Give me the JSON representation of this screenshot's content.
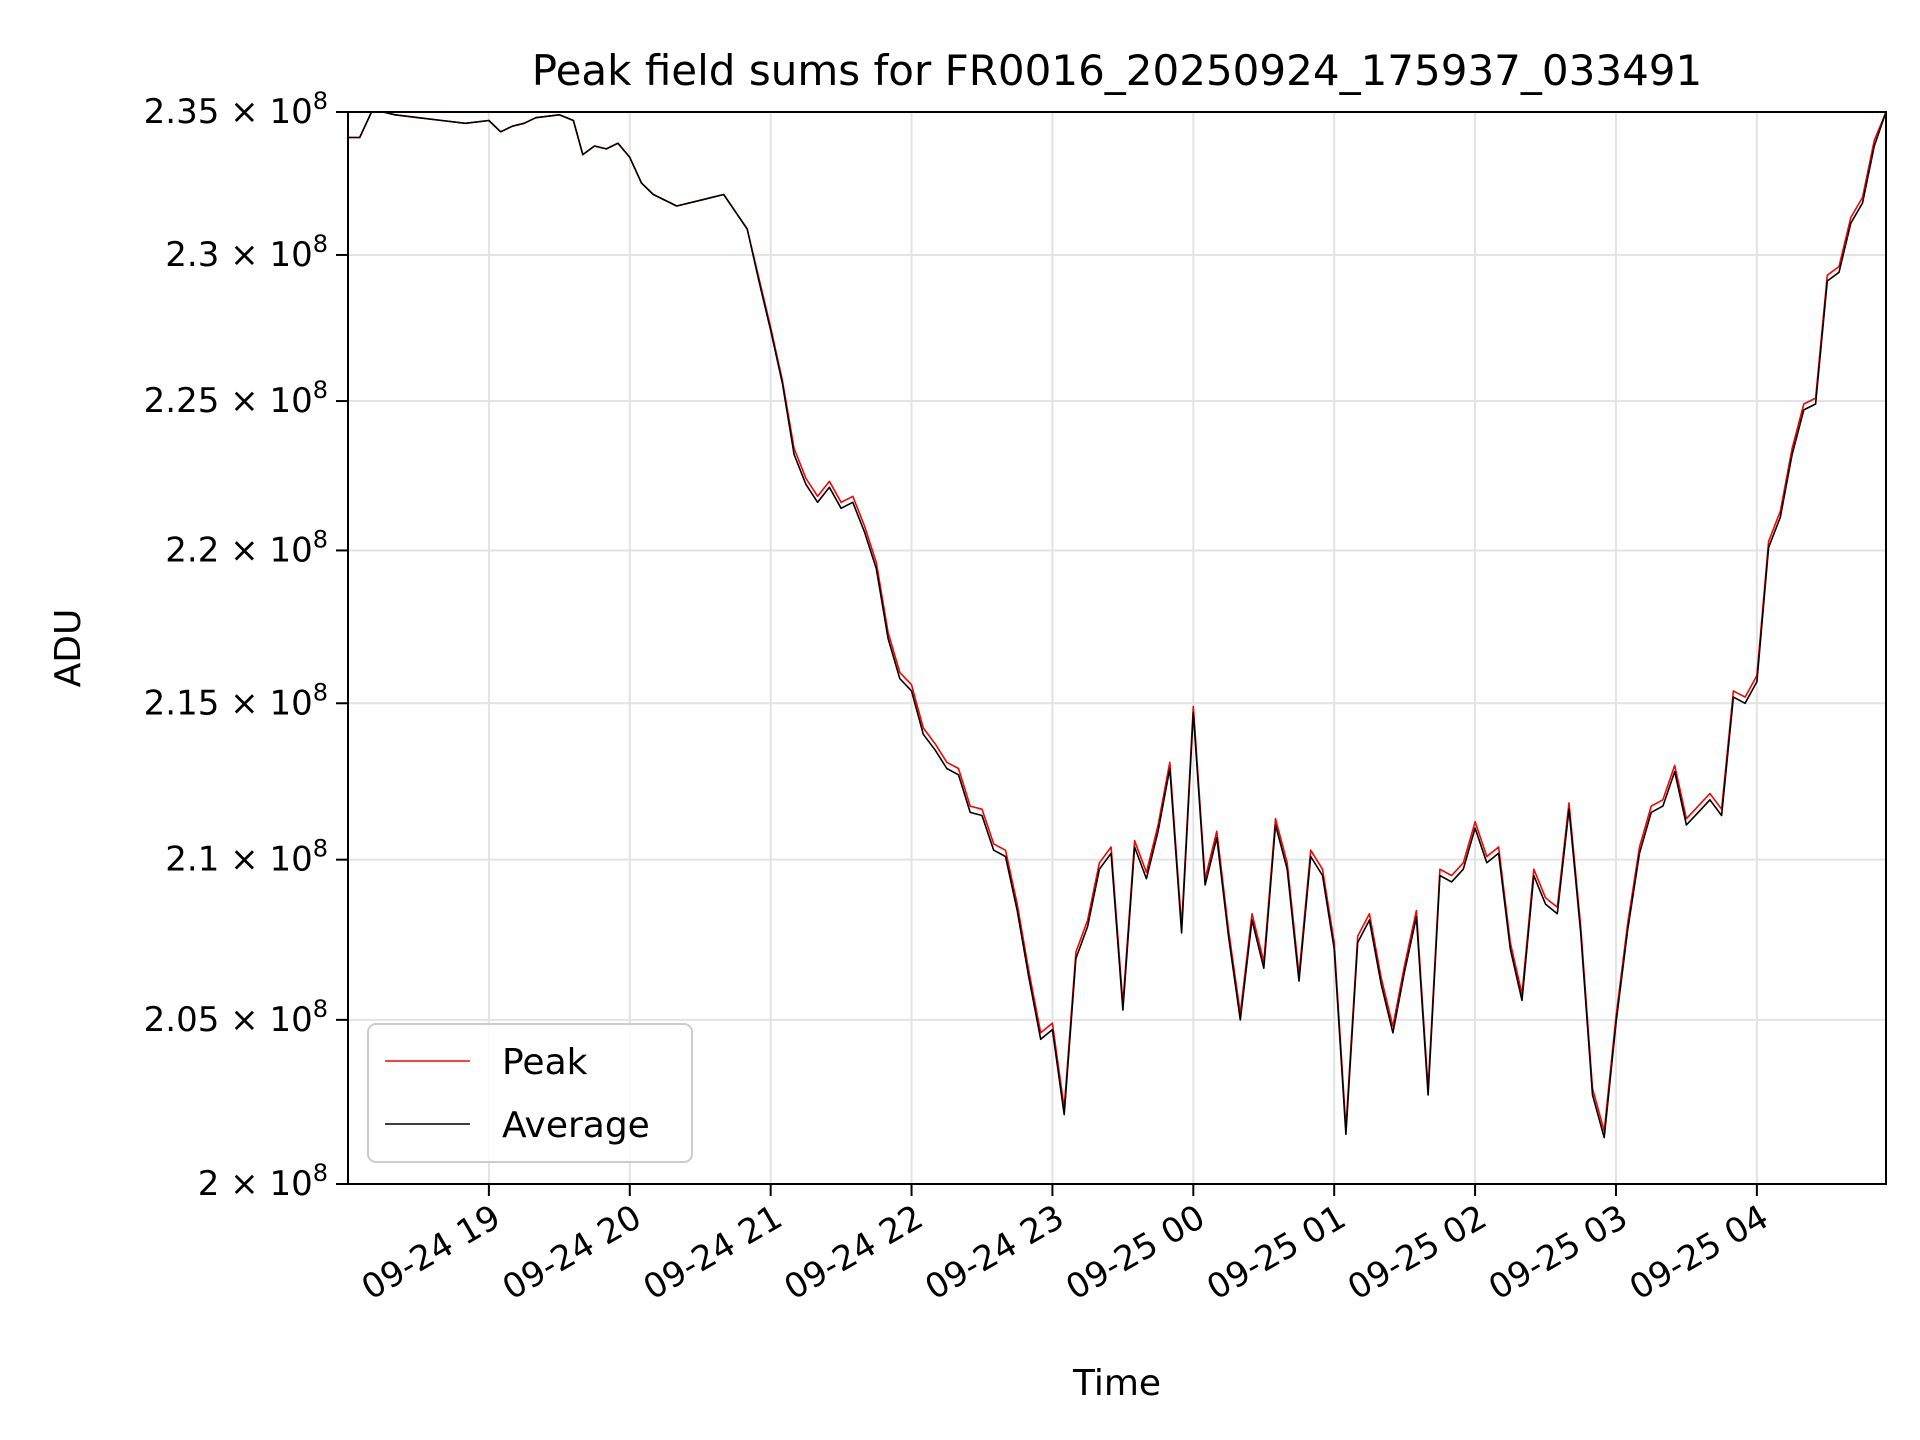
{
  "chart_data": {
    "type": "line",
    "title": "Peak field sums for FR0016_20250924_175937_033491",
    "xlabel": "Time",
    "ylabel": "ADU",
    "x_is_time": true,
    "xlim": [
      "2025-09-24 18:00",
      "2025-09-25 04:55"
    ],
    "ylim": [
      200000000,
      235000000
    ],
    "y_scale": "log",
    "grid": true,
    "legend": {
      "position": "lower-left"
    },
    "x_ticks": [
      {
        "value": "2025-09-24 19:00",
        "label": "09-24 19"
      },
      {
        "value": "2025-09-24 20:00",
        "label": "09-24 20"
      },
      {
        "value": "2025-09-24 21:00",
        "label": "09-24 21"
      },
      {
        "value": "2025-09-24 22:00",
        "label": "09-24 22"
      },
      {
        "value": "2025-09-24 23:00",
        "label": "09-24 23"
      },
      {
        "value": "2025-09-25 00:00",
        "label": "09-25 00"
      },
      {
        "value": "2025-09-25 01:00",
        "label": "09-25 01"
      },
      {
        "value": "2025-09-25 02:00",
        "label": "09-25 02"
      },
      {
        "value": "2025-09-25 03:00",
        "label": "09-25 03"
      },
      {
        "value": "2025-09-25 04:00",
        "label": "09-25 04"
      }
    ],
    "y_ticks": [
      {
        "value": 200000000,
        "mantissa": "2",
        "exponent": "8"
      },
      {
        "value": 205000000,
        "mantissa": "2.05",
        "exponent": "8"
      },
      {
        "value": 210000000,
        "mantissa": "2.1",
        "exponent": "8"
      },
      {
        "value": 215000000,
        "mantissa": "2.15",
        "exponent": "8"
      },
      {
        "value": 220000000,
        "mantissa": "2.2",
        "exponent": "8"
      },
      {
        "value": 225000000,
        "mantissa": "2.25",
        "exponent": "8"
      },
      {
        "value": 230000000,
        "mantissa": "2.3",
        "exponent": "8"
      },
      {
        "value": 235000000,
        "mantissa": "2.35",
        "exponent": "8"
      }
    ],
    "series": [
      {
        "name": "Peak",
        "color": "#ff0000",
        "x": [
          "2025-09-24 18:00",
          "2025-09-24 18:05",
          "2025-09-24 18:10",
          "2025-09-24 18:15",
          "2025-09-24 18:20",
          "2025-09-24 18:30",
          "2025-09-24 18:40",
          "2025-09-24 18:50",
          "2025-09-24 19:00",
          "2025-09-24 19:05",
          "2025-09-24 19:10",
          "2025-09-24 19:15",
          "2025-09-24 19:20",
          "2025-09-24 19:30",
          "2025-09-24 19:36",
          "2025-09-24 19:40",
          "2025-09-24 19:45",
          "2025-09-24 19:50",
          "2025-09-24 19:55",
          "2025-09-24 20:00",
          "2025-09-24 20:05",
          "2025-09-24 20:10",
          "2025-09-24 20:20",
          "2025-09-24 20:30",
          "2025-09-24 20:40",
          "2025-09-24 20:45",
          "2025-09-24 20:50",
          "2025-09-24 20:55",
          "2025-09-24 21:00",
          "2025-09-24 21:05",
          "2025-09-24 21:10",
          "2025-09-24 21:15",
          "2025-09-24 21:20",
          "2025-09-24 21:25",
          "2025-09-24 21:30",
          "2025-09-24 21:35",
          "2025-09-24 21:40",
          "2025-09-24 21:45",
          "2025-09-24 21:50",
          "2025-09-24 21:55",
          "2025-09-24 22:00",
          "2025-09-24 22:05",
          "2025-09-24 22:10",
          "2025-09-24 22:15",
          "2025-09-24 22:20",
          "2025-09-24 22:25",
          "2025-09-24 22:30",
          "2025-09-24 22:35",
          "2025-09-24 22:40",
          "2025-09-24 22:45",
          "2025-09-24 22:50",
          "2025-09-24 22:55",
          "2025-09-24 23:00",
          "2025-09-24 23:05",
          "2025-09-24 23:10",
          "2025-09-24 23:15",
          "2025-09-24 23:20",
          "2025-09-24 23:25",
          "2025-09-24 23:30",
          "2025-09-24 23:35",
          "2025-09-24 23:40",
          "2025-09-24 23:45",
          "2025-09-24 23:50",
          "2025-09-24 23:55",
          "2025-09-25 00:00",
          "2025-09-25 00:05",
          "2025-09-25 00:10",
          "2025-09-25 00:15",
          "2025-09-25 00:20",
          "2025-09-25 00:25",
          "2025-09-25 00:30",
          "2025-09-25 00:35",
          "2025-09-25 00:40",
          "2025-09-25 00:45",
          "2025-09-25 00:50",
          "2025-09-25 00:55",
          "2025-09-25 01:00",
          "2025-09-25 01:05",
          "2025-09-25 01:10",
          "2025-09-25 01:15",
          "2025-09-25 01:20",
          "2025-09-25 01:25",
          "2025-09-25 01:30",
          "2025-09-25 01:35",
          "2025-09-25 01:40",
          "2025-09-25 01:45",
          "2025-09-25 01:50",
          "2025-09-25 01:55",
          "2025-09-25 02:00",
          "2025-09-25 02:05",
          "2025-09-25 02:10",
          "2025-09-25 02:15",
          "2025-09-25 02:20",
          "2025-09-25 02:25",
          "2025-09-25 02:30",
          "2025-09-25 02:35",
          "2025-09-25 02:40",
          "2025-09-25 02:45",
          "2025-09-25 02:50",
          "2025-09-25 02:55",
          "2025-09-25 03:00",
          "2025-09-25 03:05",
          "2025-09-25 03:10",
          "2025-09-25 03:15",
          "2025-09-25 03:20",
          "2025-09-25 03:25",
          "2025-09-25 03:30",
          "2025-09-25 03:35",
          "2025-09-25 03:40",
          "2025-09-25 03:45",
          "2025-09-25 03:50",
          "2025-09-25 03:55",
          "2025-09-25 04:00",
          "2025-09-25 04:05",
          "2025-09-25 04:10",
          "2025-09-25 04:15",
          "2025-09-25 04:20",
          "2025-09-25 04:25",
          "2025-09-25 04:30",
          "2025-09-25 04:35",
          "2025-09-25 04:40",
          "2025-09-25 04:45",
          "2025-09-25 04:50",
          "2025-09-25 04:55"
        ],
        "y": [
          234100000,
          234100000,
          235000000,
          235000000,
          234900000,
          234800000,
          234700000,
          234600000,
          234700000,
          234300000,
          234500000,
          234600000,
          234800000,
          234900000,
          234700000,
          233500000,
          233800000,
          233700000,
          233900000,
          233400000,
          232500000,
          232100000,
          231700000,
          231900000,
          232100000,
          231500000,
          230900000,
          229200000,
          227500000,
          225700000,
          223400000,
          222400000,
          221800000,
          222300000,
          221600000,
          221800000,
          220800000,
          219600000,
          217300000,
          216000000,
          215600000,
          214200000,
          213700000,
          213100000,
          212900000,
          211700000,
          211600000,
          210500000,
          210300000,
          208600000,
          206500000,
          204600000,
          204900000,
          202300000,
          207100000,
          208100000,
          209900000,
          210400000,
          205500000,
          210600000,
          209600000,
          211100000,
          213100000,
          207900000,
          214900000,
          209400000,
          210900000,
          207800000,
          205200000,
          208300000,
          206800000,
          211300000,
          209900000,
          206400000,
          210300000,
          209700000,
          207400000,
          201700000,
          207600000,
          208300000,
          206300000,
          204800000,
          206700000,
          208400000,
          202900000,
          209700000,
          209500000,
          209900000,
          211200000,
          210100000,
          210400000,
          207400000,
          205800000,
          209700000,
          208800000,
          208500000,
          211800000,
          207900000,
          202900000,
          201600000,
          205100000,
          208000000,
          210400000,
          211700000,
          211900000,
          213000000,
          211300000,
          211700000,
          212100000,
          211600000,
          215400000,
          215200000,
          215900000,
          220300000,
          221300000,
          223400000,
          224900000,
          225100000,
          229300000,
          229600000,
          231300000,
          232000000,
          234000000,
          235000000
        ]
      },
      {
        "name": "Average",
        "color": "#000000",
        "x": [
          "2025-09-24 18:00",
          "2025-09-24 18:05",
          "2025-09-24 18:10",
          "2025-09-24 18:15",
          "2025-09-24 18:20",
          "2025-09-24 18:30",
          "2025-09-24 18:40",
          "2025-09-24 18:50",
          "2025-09-24 19:00",
          "2025-09-24 19:05",
          "2025-09-24 19:10",
          "2025-09-24 19:15",
          "2025-09-24 19:20",
          "2025-09-24 19:30",
          "2025-09-24 19:36",
          "2025-09-24 19:40",
          "2025-09-24 19:45",
          "2025-09-24 19:50",
          "2025-09-24 19:55",
          "2025-09-24 20:00",
          "2025-09-24 20:05",
          "2025-09-24 20:10",
          "2025-09-24 20:20",
          "2025-09-24 20:30",
          "2025-09-24 20:40",
          "2025-09-24 20:45",
          "2025-09-24 20:50",
          "2025-09-24 20:55",
          "2025-09-24 21:00",
          "2025-09-24 21:05",
          "2025-09-24 21:10",
          "2025-09-24 21:15",
          "2025-09-24 21:20",
          "2025-09-24 21:25",
          "2025-09-24 21:30",
          "2025-09-24 21:35",
          "2025-09-24 21:40",
          "2025-09-24 21:45",
          "2025-09-24 21:50",
          "2025-09-24 21:55",
          "2025-09-24 22:00",
          "2025-09-24 22:05",
          "2025-09-24 22:10",
          "2025-09-24 22:15",
          "2025-09-24 22:20",
          "2025-09-24 22:25",
          "2025-09-24 22:30",
          "2025-09-24 22:35",
          "2025-09-24 22:40",
          "2025-09-24 22:45",
          "2025-09-24 22:50",
          "2025-09-24 22:55",
          "2025-09-24 23:00",
          "2025-09-24 23:05",
          "2025-09-24 23:10",
          "2025-09-24 23:15",
          "2025-09-24 23:20",
          "2025-09-24 23:25",
          "2025-09-24 23:30",
          "2025-09-24 23:35",
          "2025-09-24 23:40",
          "2025-09-24 23:45",
          "2025-09-24 23:50",
          "2025-09-24 23:55",
          "2025-09-25 00:00",
          "2025-09-25 00:05",
          "2025-09-25 00:10",
          "2025-09-25 00:15",
          "2025-09-25 00:20",
          "2025-09-25 00:25",
          "2025-09-25 00:30",
          "2025-09-25 00:35",
          "2025-09-25 00:40",
          "2025-09-25 00:45",
          "2025-09-25 00:50",
          "2025-09-25 00:55",
          "2025-09-25 01:00",
          "2025-09-25 01:05",
          "2025-09-25 01:10",
          "2025-09-25 01:15",
          "2025-09-25 01:20",
          "2025-09-25 01:25",
          "2025-09-25 01:30",
          "2025-09-25 01:35",
          "2025-09-25 01:40",
          "2025-09-25 01:45",
          "2025-09-25 01:50",
          "2025-09-25 01:55",
          "2025-09-25 02:00",
          "2025-09-25 02:05",
          "2025-09-25 02:10",
          "2025-09-25 02:15",
          "2025-09-25 02:20",
          "2025-09-25 02:25",
          "2025-09-25 02:30",
          "2025-09-25 02:35",
          "2025-09-25 02:40",
          "2025-09-25 02:45",
          "2025-09-25 02:50",
          "2025-09-25 02:55",
          "2025-09-25 03:00",
          "2025-09-25 03:05",
          "2025-09-25 03:10",
          "2025-09-25 03:15",
          "2025-09-25 03:20",
          "2025-09-25 03:25",
          "2025-09-25 03:30",
          "2025-09-25 03:35",
          "2025-09-25 03:40",
          "2025-09-25 03:45",
          "2025-09-25 03:50",
          "2025-09-25 03:55",
          "2025-09-25 04:00",
          "2025-09-25 04:05",
          "2025-09-25 04:10",
          "2025-09-25 04:15",
          "2025-09-25 04:20",
          "2025-09-25 04:25",
          "2025-09-25 04:30",
          "2025-09-25 04:35",
          "2025-09-25 04:40",
          "2025-09-25 04:45",
          "2025-09-25 04:50",
          "2025-09-25 04:55"
        ],
        "y": [
          234100000,
          234100000,
          235000000,
          235000000,
          234900000,
          234800000,
          234700000,
          234600000,
          234700000,
          234300000,
          234500000,
          234600000,
          234800000,
          234900000,
          234700000,
          233500000,
          233800000,
          233700000,
          233900000,
          233400000,
          232500000,
          232100000,
          231700000,
          231900000,
          232100000,
          231500000,
          230900000,
          229100000,
          227400000,
          225600000,
          223200000,
          222200000,
          221600000,
          222100000,
          221400000,
          221600000,
          220600000,
          219400000,
          217100000,
          215800000,
          215400000,
          214000000,
          213500000,
          212900000,
          212700000,
          211500000,
          211400000,
          210300000,
          210100000,
          208400000,
          206300000,
          204400000,
          204700000,
          202100000,
          206900000,
          207900000,
          209700000,
          210200000,
          205300000,
          210400000,
          209400000,
          210900000,
          212900000,
          207700000,
          214700000,
          209200000,
          210700000,
          207600000,
          205000000,
          208100000,
          206600000,
          211100000,
          209700000,
          206200000,
          210100000,
          209500000,
          207200000,
          201500000,
          207400000,
          208100000,
          206100000,
          204600000,
          206500000,
          208200000,
          202700000,
          209500000,
          209300000,
          209700000,
          211000000,
          209900000,
          210200000,
          207200000,
          205600000,
          209500000,
          208600000,
          208300000,
          211600000,
          207700000,
          202700000,
          201400000,
          204900000,
          207800000,
          210200000,
          211500000,
          211700000,
          212800000,
          211100000,
          211500000,
          211900000,
          211400000,
          215200000,
          215000000,
          215700000,
          220100000,
          221100000,
          223200000,
          224700000,
          224900000,
          229100000,
          229400000,
          231100000,
          231800000,
          233800000,
          235000000
        ]
      }
    ]
  }
}
